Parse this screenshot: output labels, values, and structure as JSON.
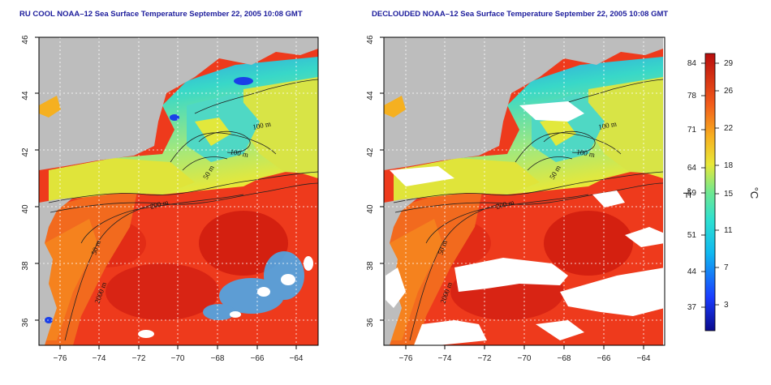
{
  "panels": [
    {
      "title": "RU COOL NOAA–12 Sea Surface Temperature September 22, 2005 10:08 GMT",
      "contour_labels": [
        "100 m",
        "100 m",
        "50 m",
        "200 m",
        "50 m",
        "2000 m"
      ]
    },
    {
      "title": "DECLOUDED NOAA–12 Sea Surface Temperature September 22, 2005 10:08 GMT",
      "contour_labels": [
        "100 m",
        "100 m",
        "50 m",
        "200 m",
        "50 m",
        "2000 m"
      ]
    }
  ],
  "axes": {
    "lon_ticks": [
      "−76",
      "−74",
      "−72",
      "−70",
      "−68",
      "−66",
      "−64"
    ],
    "lat_ticks": [
      "46",
      "44",
      "42",
      "40",
      "38",
      "36"
    ]
  },
  "colorbar": {
    "f_label": "°F",
    "c_label": "°C",
    "f_ticks": [
      "84",
      "78",
      "71",
      "64",
      "59",
      "51",
      "44",
      "37"
    ],
    "c_ticks": [
      "29",
      "26",
      "22",
      "18",
      "15",
      "11",
      "7",
      "3"
    ]
  },
  "colors": {
    "land": "#bdbdbd",
    "warm_water": "#ee3a1c",
    "deep_red": "#cc1111",
    "shelf_cyan": "#38d8c8",
    "yellow": "#e8e838",
    "cloud": "#ffffff",
    "title_blue": "#1d1d9c"
  }
}
